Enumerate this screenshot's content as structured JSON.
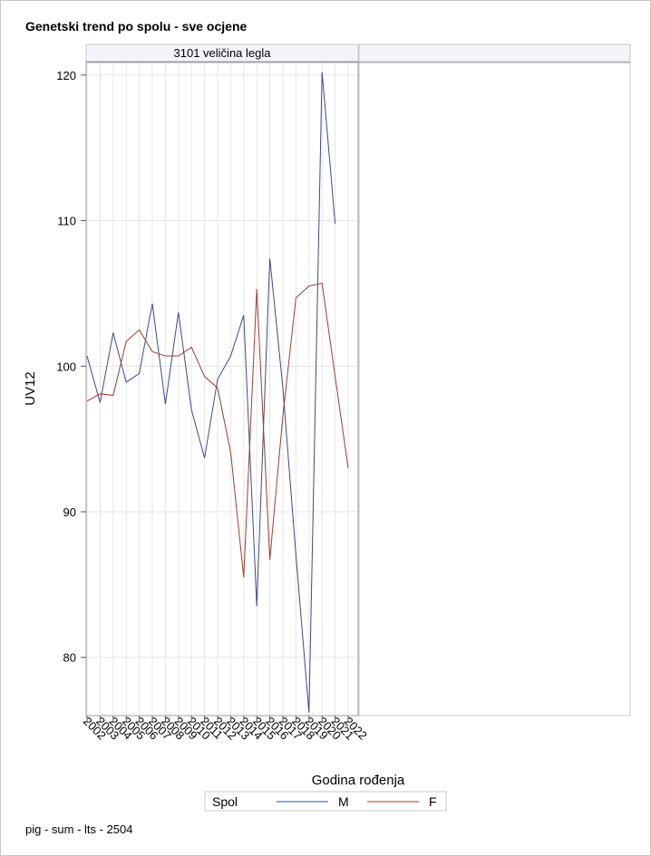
{
  "title": "Genetski trend po spolu - sve ocjene",
  "footnote": "pig - sum - lts - 2504",
  "panel_label": "3101 veličina legla",
  "chart_data": {
    "type": "line",
    "title": "Genetski trend po spolu - sve ocjene",
    "xlabel": "Godina rođenja",
    "ylabel": "UV12",
    "x": [
      2002,
      2003,
      2004,
      2005,
      2006,
      2007,
      2008,
      2009,
      2010,
      2011,
      2012,
      2013,
      2014,
      2015,
      2016,
      2017,
      2018,
      2019,
      2020,
      2021,
      2022
    ],
    "xtick_labels": [
      "2002",
      "2003",
      "2004",
      "2005",
      "2006",
      "2007",
      "2008",
      "2009",
      "2010",
      "2011",
      "2012",
      "2013",
      "2014",
      "2015",
      "2016",
      "2017",
      "2018",
      "2019",
      "2020",
      "2021",
      "2022"
    ],
    "xlim": [
      2002,
      2022
    ],
    "ylim": [
      76,
      120.8
    ],
    "yticks": [
      80,
      90,
      100,
      110,
      120
    ],
    "ytick_labels": [
      "80",
      "90",
      "100",
      "110",
      "120"
    ],
    "grid": true,
    "legend_title": "Spol",
    "legend_position": "bottom",
    "series": [
      {
        "name": "M",
        "color": "#3b4a8e",
        "values": [
          100.7,
          97.5,
          102.3,
          98.9,
          99.5,
          104.3,
          97.4,
          103.7,
          97.0,
          93.7,
          99.1,
          100.7,
          103.5,
          83.5,
          107.4,
          98.5,
          87.0,
          76.2,
          120.2,
          109.8,
          null
        ]
      },
      {
        "name": "F",
        "color": "#a23a2c",
        "values": [
          97.6,
          98.1,
          98.0,
          101.7,
          102.5,
          101.0,
          100.7,
          100.7,
          101.3,
          99.3,
          98.5,
          94.1,
          85.5,
          105.3,
          86.7,
          96.6,
          104.7,
          105.5,
          105.7,
          99.3,
          93.0
        ]
      }
    ]
  }
}
